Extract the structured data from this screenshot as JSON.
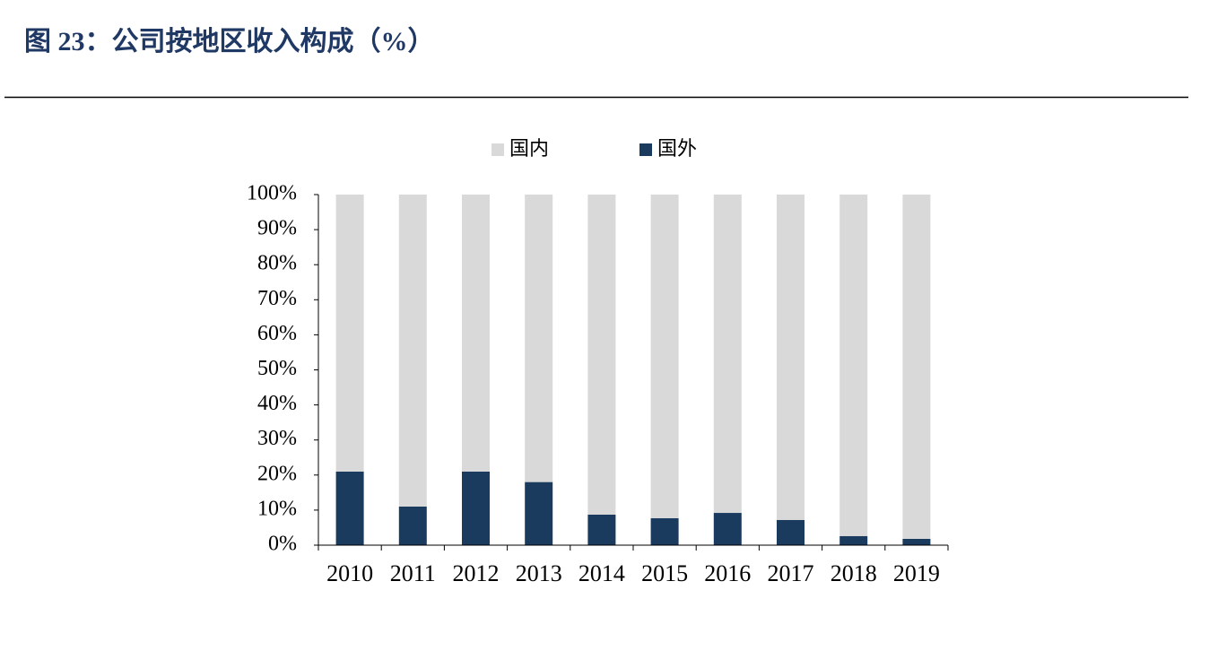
{
  "chart_data": {
    "type": "stacked-bar",
    "title": "图 23：公司按地区收入构成（%）",
    "categories": [
      "2010",
      "2011",
      "2012",
      "2013",
      "2014",
      "2015",
      "2016",
      "2017",
      "2018",
      "2019"
    ],
    "series": [
      {
        "name": "国内",
        "color": "#d9d9d9",
        "values": [
          79,
          89,
          79,
          82,
          91.3,
          92.3,
          90.8,
          92.8,
          97.4,
          98.2
        ]
      },
      {
        "name": "国外",
        "color": "#1a3a5e",
        "values": [
          21,
          11,
          21,
          18,
          8.7,
          7.7,
          9.2,
          7.2,
          2.6,
          1.8
        ]
      }
    ],
    "ylim": [
      0,
      100
    ],
    "yticks": [
      {
        "value": 0,
        "label": "0%"
      },
      {
        "value": 10,
        "label": "10%"
      },
      {
        "value": 20,
        "label": "20%"
      },
      {
        "value": 30,
        "label": "30%"
      },
      {
        "value": 40,
        "label": "40%"
      },
      {
        "value": 50,
        "label": "50%"
      },
      {
        "value": 60,
        "label": "60%"
      },
      {
        "value": 70,
        "label": "70%"
      },
      {
        "value": 80,
        "label": "80%"
      },
      {
        "value": 90,
        "label": "90%"
      },
      {
        "value": 100,
        "label": "100%"
      }
    ],
    "legend": "top"
  }
}
